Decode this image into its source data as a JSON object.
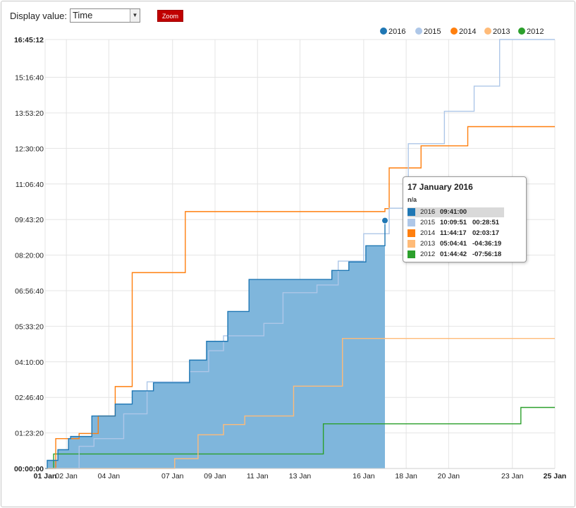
{
  "controls": {
    "display_label": "Display value:",
    "display_value": "Time",
    "zoom_label": "Zoom"
  },
  "colors": {
    "2016": "#1f77b4",
    "2015": "#aec7e8",
    "2014": "#ff7f0e",
    "2013": "#ffbb78",
    "2012": "#2ca02c",
    "area_2016": "#7fb6dc",
    "grid": "#e4e4e4"
  },
  "chart_data": {
    "type": "line",
    "title": "",
    "x_unit": "day of January",
    "y_unit": "hh:mm:ss",
    "xlim": [
      1,
      25
    ],
    "ylim": [
      "00:00:00",
      "16:45:12"
    ],
    "x_ticks": [
      "01 Jan",
      "02 Jan",
      "04 Jan",
      "07 Jan",
      "09 Jan",
      "11 Jan",
      "13 Jan",
      "16 Jan",
      "18 Jan",
      "20 Jan",
      "23 Jan",
      "25 Jan"
    ],
    "x_tick_days": [
      1,
      2,
      4,
      7,
      9,
      11,
      13,
      16,
      18,
      20,
      23,
      25
    ],
    "y_ticks": [
      "00:00:00",
      "01:23:20",
      "02:46:40",
      "04:10:00",
      "05:33:20",
      "06:56:40",
      "08:20:00",
      "09:43:20",
      "11:06:40",
      "12:30:00",
      "13:53:20",
      "15:16:40",
      "16:45:12"
    ],
    "grid": true,
    "legend_position": "top-right",
    "series": [
      {
        "name": "2016",
        "area": true,
        "points": [
          [
            1.0,
            "00:00:00"
          ],
          [
            1.1,
            "00:19:00"
          ],
          [
            1.6,
            "00:44:00"
          ],
          [
            2.1,
            "01:10:00"
          ],
          [
            2.2,
            "01:15:00"
          ],
          [
            3.2,
            "02:03:00"
          ],
          [
            4.3,
            "02:31:00"
          ],
          [
            5.1,
            "03:02:00"
          ],
          [
            6.1,
            "03:21:00"
          ],
          [
            7.8,
            "04:14:00"
          ],
          [
            8.6,
            "04:58:00"
          ],
          [
            9.6,
            "06:08:00"
          ],
          [
            10.6,
            "07:23:00"
          ],
          [
            14.5,
            "07:44:00"
          ],
          [
            15.3,
            "08:04:00"
          ],
          [
            16.1,
            "08:42:00"
          ],
          [
            17.0,
            "09:41:00"
          ]
        ]
      },
      {
        "name": "2015",
        "area": false,
        "points": [
          [
            1.0,
            "00:00:00"
          ],
          [
            2.6,
            "00:52:00"
          ],
          [
            3.3,
            "01:10:00"
          ],
          [
            4.7,
            "02:08:00"
          ],
          [
            5.8,
            "03:23:00"
          ],
          [
            7.8,
            "03:47:00"
          ],
          [
            8.7,
            "04:36:00"
          ],
          [
            9.4,
            "05:11:00"
          ],
          [
            11.3,
            "05:40:00"
          ],
          [
            12.2,
            "06:52:00"
          ],
          [
            13.8,
            "07:10:00"
          ],
          [
            14.8,
            "08:06:00"
          ],
          [
            16.0,
            "09:10:00"
          ],
          [
            17.2,
            "10:09:51"
          ],
          [
            18.1,
            "12:41:00"
          ],
          [
            19.8,
            "13:57:00"
          ],
          [
            21.2,
            "14:56:00"
          ],
          [
            22.4,
            "16:45:12"
          ],
          [
            25.0,
            "16:45:12"
          ]
        ]
      },
      {
        "name": "2014",
        "area": false,
        "points": [
          [
            1.0,
            "00:00:00"
          ],
          [
            1.5,
            "01:10:00"
          ],
          [
            2.6,
            "01:22:00"
          ],
          [
            3.5,
            "02:03:00"
          ],
          [
            4.3,
            "03:12:00"
          ],
          [
            5.1,
            "07:39:00"
          ],
          [
            7.6,
            "10:02:00"
          ],
          [
            17.0,
            "10:09:00"
          ],
          [
            17.2,
            "11:44:17"
          ],
          [
            18.7,
            "12:36:00"
          ],
          [
            20.9,
            "13:21:00"
          ],
          [
            24.4,
            "13:21:00"
          ],
          [
            25.0,
            "13:21:00"
          ]
        ]
      },
      {
        "name": "2013",
        "area": false,
        "points": [
          [
            1.0,
            "00:00:00"
          ],
          [
            7.1,
            "00:23:00"
          ],
          [
            8.2,
            "01:19:00"
          ],
          [
            9.4,
            "01:43:00"
          ],
          [
            10.4,
            "02:03:00"
          ],
          [
            12.7,
            "03:13:00"
          ],
          [
            15.0,
            "05:04:41"
          ],
          [
            25.0,
            "05:04:41"
          ]
        ]
      },
      {
        "name": "2012",
        "area": false,
        "points": [
          [
            1.0,
            "00:00:00"
          ],
          [
            1.4,
            "00:34:00"
          ],
          [
            14.1,
            "01:44:42"
          ],
          [
            23.4,
            "02:23:00"
          ],
          [
            25.0,
            "02:23:00"
          ]
        ]
      }
    ]
  },
  "tooltip": {
    "title": "17 January 2016",
    "subtitle": "n/a",
    "rows": [
      {
        "year": "2016",
        "time": "09:41:00",
        "diff": "",
        "highlight": true
      },
      {
        "year": "2015",
        "time": "10:09:51",
        "diff": "00:28:51",
        "highlight": false
      },
      {
        "year": "2014",
        "time": "11:44:17",
        "diff": "02:03:17",
        "highlight": false
      },
      {
        "year": "2013",
        "time": "05:04:41",
        "diff": "-04:36:19",
        "highlight": false
      },
      {
        "year": "2012",
        "time": "01:44:42",
        "diff": "-07:56:18",
        "highlight": false
      }
    ]
  }
}
